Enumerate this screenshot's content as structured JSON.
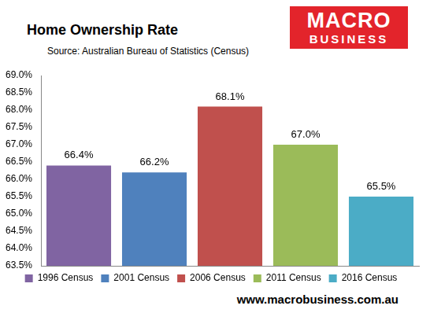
{
  "chart_data": {
    "type": "bar",
    "title": "Home Ownership Rate",
    "subtitle": "Source: Australian Bureau of Statistics (Census)",
    "categories": [
      "1996 Census",
      "2001 Census",
      "2006 Census",
      "2011 Census",
      "2016 Census"
    ],
    "values": [
      66.4,
      66.2,
      68.1,
      67.0,
      65.5
    ],
    "value_labels": [
      "66.4%",
      "66.2%",
      "68.1%",
      "67.0%",
      "65.5%"
    ],
    "colors": [
      "#8064a2",
      "#4f81bd",
      "#c0504d",
      "#9bbb59",
      "#4bacc6"
    ],
    "ylim": [
      63.5,
      69.0
    ],
    "yticks": [
      {
        "value": 63.5,
        "label": "63.5%"
      },
      {
        "value": 64.0,
        "label": "64.0%"
      },
      {
        "value": 64.5,
        "label": "64.5%"
      },
      {
        "value": 65.0,
        "label": "65.0%"
      },
      {
        "value": 65.5,
        "label": "65.5%"
      },
      {
        "value": 66.0,
        "label": "66.0%"
      },
      {
        "value": 66.5,
        "label": "66.5%"
      },
      {
        "value": 67.0,
        "label": "67.0%"
      },
      {
        "value": 67.5,
        "label": "67.5%"
      },
      {
        "value": 68.0,
        "label": "68.0%"
      },
      {
        "value": 68.5,
        "label": "68.5%"
      },
      {
        "value": 69.0,
        "label": "69.0%"
      }
    ],
    "grid": false,
    "legend": "bottom",
    "data_labels": true,
    "tick_labels": "y",
    "annotations": [
      "MACRO",
      "BUSINESS",
      "www.macrobusiness.com.au"
    ]
  }
}
